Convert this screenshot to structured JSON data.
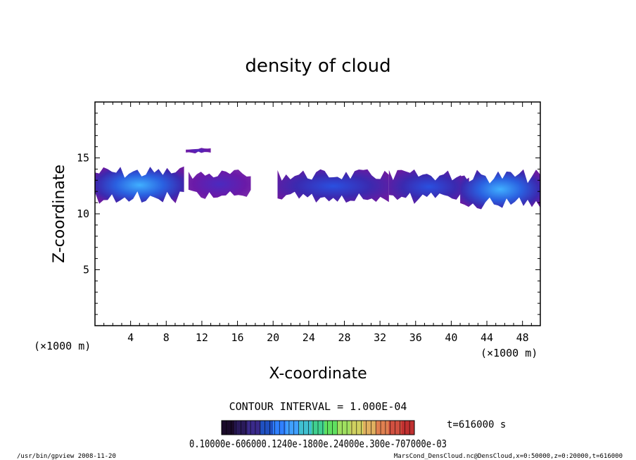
{
  "chart_data": {
    "type": "heatmap",
    "title": "density of cloud",
    "xlabel": "X-coordinate",
    "ylabel": "Z-coordinate",
    "x_unit": "(×1000 m)",
    "y_unit": "(×1000 m)",
    "xlim": [
      0,
      50
    ],
    "ylim": [
      0,
      20
    ],
    "x_ticks": [
      4,
      8,
      12,
      16,
      20,
      24,
      28,
      32,
      36,
      40,
      44,
      48
    ],
    "y_ticks": [
      5,
      10,
      15
    ],
    "contour_interval": "CONTOUR INTERVAL = 1.000E-04",
    "time_label": "t=616000 s",
    "colorbar_labels": "0.10000e-606000.1240e-1800e.24000e.300e-707000e-03",
    "colorbar_colors": [
      "#1a0a2a",
      "#2a1a5a",
      "#3a2a8a",
      "#2050c0",
      "#3080ff",
      "#40a0ff",
      "#40c0d0",
      "#40d090",
      "#60e060",
      "#a0e060",
      "#d0d060",
      "#e0b060",
      "#e08050",
      "#d05040",
      "#c03030"
    ],
    "cloud_colors": {
      "low": "#5a1a9a",
      "mid": "#2a3ad0",
      "high": "#3aa0ff"
    },
    "cloud_regions": [
      {
        "name": "left-core",
        "x_range": [
          0,
          10
        ],
        "z_range": [
          10.8,
          14.3
        ],
        "level": "high"
      },
      {
        "name": "mid-left",
        "x_range": [
          10.5,
          17.5
        ],
        "z_range": [
          11.2,
          14.0
        ],
        "level": "low"
      },
      {
        "name": "high-patch",
        "x_range": [
          10.2,
          13.0
        ],
        "z_range": [
          15.4,
          15.9
        ],
        "level": "low"
      },
      {
        "name": "center",
        "x_range": [
          20.5,
          33
        ],
        "z_range": [
          11.0,
          14.0
        ],
        "level": "mid"
      },
      {
        "name": "right",
        "x_range": [
          33,
          42
        ],
        "z_range": [
          10.8,
          14.0
        ],
        "level": "mid"
      },
      {
        "name": "far-right",
        "x_range": [
          41,
          50
        ],
        "z_range": [
          10.3,
          14.0
        ],
        "level": "high"
      }
    ],
    "grid": false
  },
  "footer": {
    "left": "/usr/bin/gpview   2008-11-20",
    "right": "MarsCond_DensCloud.nc@DensCloud,x=0:50000,z=0:20000,t=616000"
  }
}
